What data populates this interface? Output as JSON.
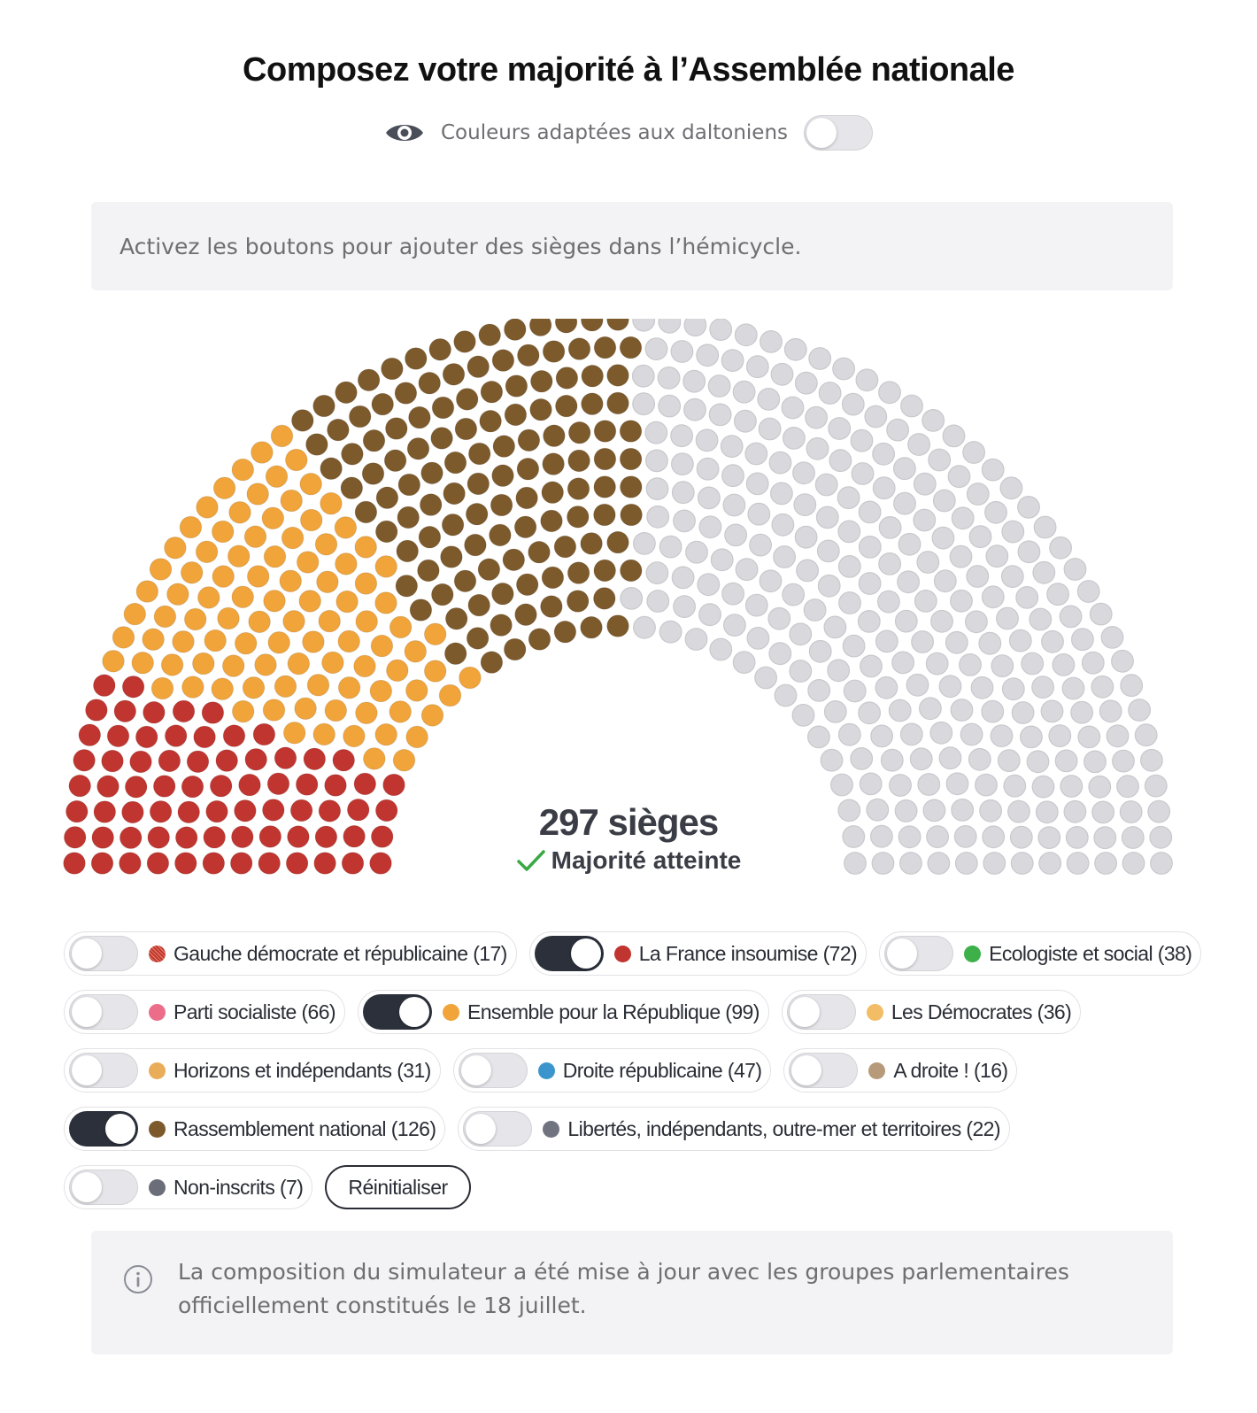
{
  "title": "Composez votre majorité à l’Assemblée nationale",
  "colorblind": {
    "label": "Couleurs adaptées aux daltoniens",
    "icon": "eye-icon",
    "enabled": false
  },
  "instruction": "Activez les boutons pour ajouter des sièges dans l’hémicycle.",
  "hemicycle": {
    "total_seats": 577,
    "filled_color_order": [
      "La France insoumise",
      "Ensemble pour la République",
      "Rassemblement national"
    ],
    "empty_color": "#d9d9dd"
  },
  "summary": {
    "count": "297 sièges",
    "status": "Majorité atteinte",
    "status_icon": "check-icon",
    "check_color": "#3aa845"
  },
  "groups": [
    {
      "label": "Gauche démocrate et républicaine (17)",
      "seats": 17,
      "color": "#c0392b",
      "active": false,
      "pattern": true
    },
    {
      "label": "La France insoumise (72)",
      "seats": 72,
      "color": "#c0352f",
      "active": true
    },
    {
      "label": "Ecologiste et social (38)",
      "seats": 38,
      "color": "#3db04a",
      "active": false
    },
    {
      "label": "Parti socialiste (66)",
      "seats": 66,
      "color": "#ec6d8a",
      "active": false
    },
    {
      "label": "Ensemble pour la République (99)",
      "seats": 99,
      "color": "#f0a43a",
      "active": true
    },
    {
      "label": "Les Démocrates (36)",
      "seats": 36,
      "color": "#f2bd64",
      "active": false
    },
    {
      "label": "Horizons et indépendants (31)",
      "seats": 31,
      "color": "#e9ad5a",
      "active": false
    },
    {
      "label": "Droite républicaine (47)",
      "seats": 47,
      "color": "#3b95cc",
      "active": false
    },
    {
      "label": "A droite ! (16)",
      "seats": 16,
      "color": "#b69a79",
      "active": false
    },
    {
      "label": "Rassemblement national (126)",
      "seats": 126,
      "color": "#7d5a2c",
      "active": true
    },
    {
      "label": "Libertés, indépendants, outre-mer et territoires (22)",
      "seats": 22,
      "color": "#707480",
      "active": false
    },
    {
      "label": "Non-inscrits (7)",
      "seats": 7,
      "color": "#6b6e78",
      "active": false
    }
  ],
  "reset_label": "Réinitialiser",
  "note": {
    "icon": "info-icon",
    "text": "La composition du simulateur a été mise à jour avec les groupes parlementaires officiellement constitués le 18 juillet."
  }
}
